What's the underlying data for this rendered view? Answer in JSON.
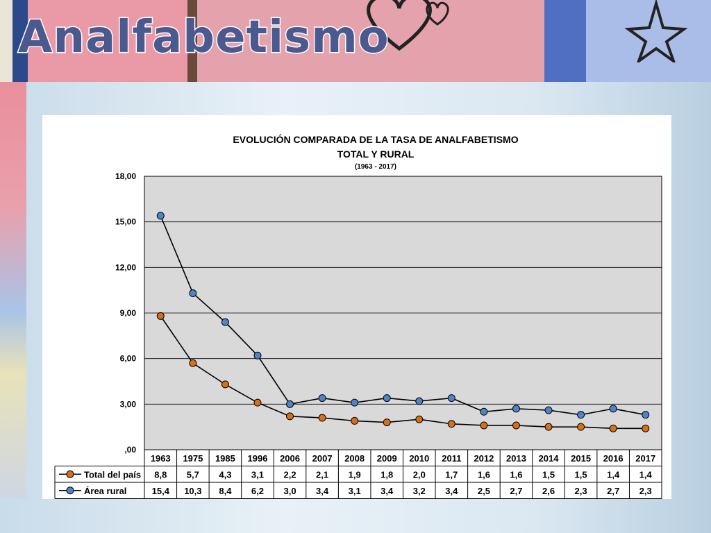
{
  "slide": {
    "title": "Analfabetismo"
  },
  "chart_data": {
    "type": "line",
    "title": "EVOLUCIÓN COMPARADA DE LA TASA DE ANALFABETISMO",
    "title_line2": "TOTAL Y RURAL",
    "subtitle": "(1963 - 2017)",
    "xlabel": "",
    "ylabel": "",
    "ylim": [
      0,
      18
    ],
    "yticks": [
      "18,00",
      "15,00",
      "12,00",
      "9,00",
      "6,00",
      "3,00",
      ",00"
    ],
    "grid": true,
    "legend": "data-table-left",
    "x": [
      "1963",
      "1975",
      "1985",
      "1996",
      "2006",
      "2007",
      "2008",
      "2009",
      "2010",
      "2011",
      "2012",
      "2013",
      "2014",
      "2015",
      "2016",
      "2017"
    ],
    "series": [
      {
        "name": "Total del país",
        "color": "#d66f18",
        "values": [
          8.8,
          5.7,
          4.3,
          3.1,
          2.2,
          2.1,
          1.9,
          1.8,
          2.0,
          1.7,
          1.6,
          1.6,
          1.5,
          1.5,
          1.4,
          1.4
        ],
        "labels": [
          "8,8",
          "5,7",
          "4,3",
          "3,1",
          "2,2",
          "2,1",
          "1,9",
          "1,8",
          "2,0",
          "1,7",
          "1,6",
          "1,6",
          "1,5",
          "1,5",
          "1,4",
          "1,4"
        ]
      },
      {
        "name": "Área rural",
        "color": "#4f85c6",
        "values": [
          15.4,
          10.3,
          8.4,
          6.2,
          3.0,
          3.4,
          3.1,
          3.4,
          3.2,
          3.4,
          2.5,
          2.7,
          2.6,
          2.3,
          2.7,
          2.3
        ],
        "labels": [
          "15,4",
          "10,3",
          "8,4",
          "6,2",
          "3,0",
          "3,4",
          "3,1",
          "3,4",
          "3,2",
          "3,4",
          "2,5",
          "2,7",
          "2,6",
          "2,3",
          "2,7",
          "2,3"
        ]
      }
    ]
  }
}
